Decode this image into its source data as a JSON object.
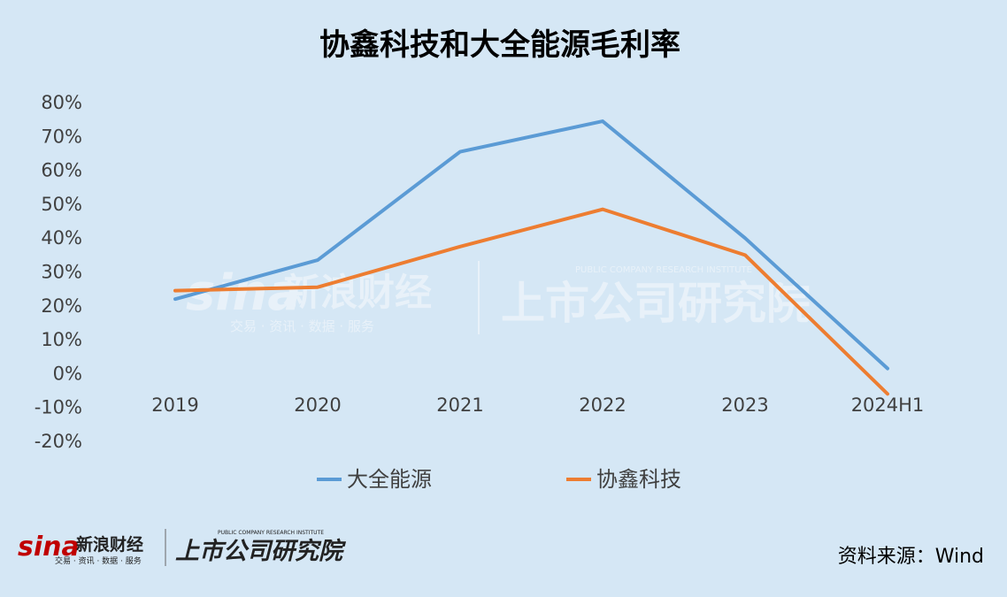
{
  "chart_data": {
    "type": "line",
    "title": "协鑫科技和大全能源毛利率",
    "categories": [
      "2019",
      "2020",
      "2021",
      "2022",
      "2023",
      "2024H1"
    ],
    "series": [
      {
        "name": "大全能源",
        "color": "#5b9bd5",
        "values": [
          22,
          33.5,
          65.5,
          74.5,
          40,
          1.5
        ]
      },
      {
        "name": "协鑫科技",
        "color": "#ed7d31",
        "values": [
          24.5,
          25.5,
          37.5,
          48.5,
          35,
          -6
        ]
      }
    ],
    "ylim": [
      -20,
      80
    ],
    "y_ticks": [
      "80%",
      "70%",
      "60%",
      "50%",
      "40%",
      "30%",
      "20%",
      "10%",
      "0%",
      "-10%",
      "-20%"
    ],
    "grid": false,
    "legend_position": "bottom"
  },
  "source": "资料来源：Wind",
  "watermark": {
    "brand": "新浪财经",
    "sina_logo": "sina",
    "tagline": "交易 · 资讯 · 数据 · 服务",
    "institute": "上市公司研究院",
    "institute_en": "PUBLIC COMPANY RESEARCH INSTITUTE"
  }
}
